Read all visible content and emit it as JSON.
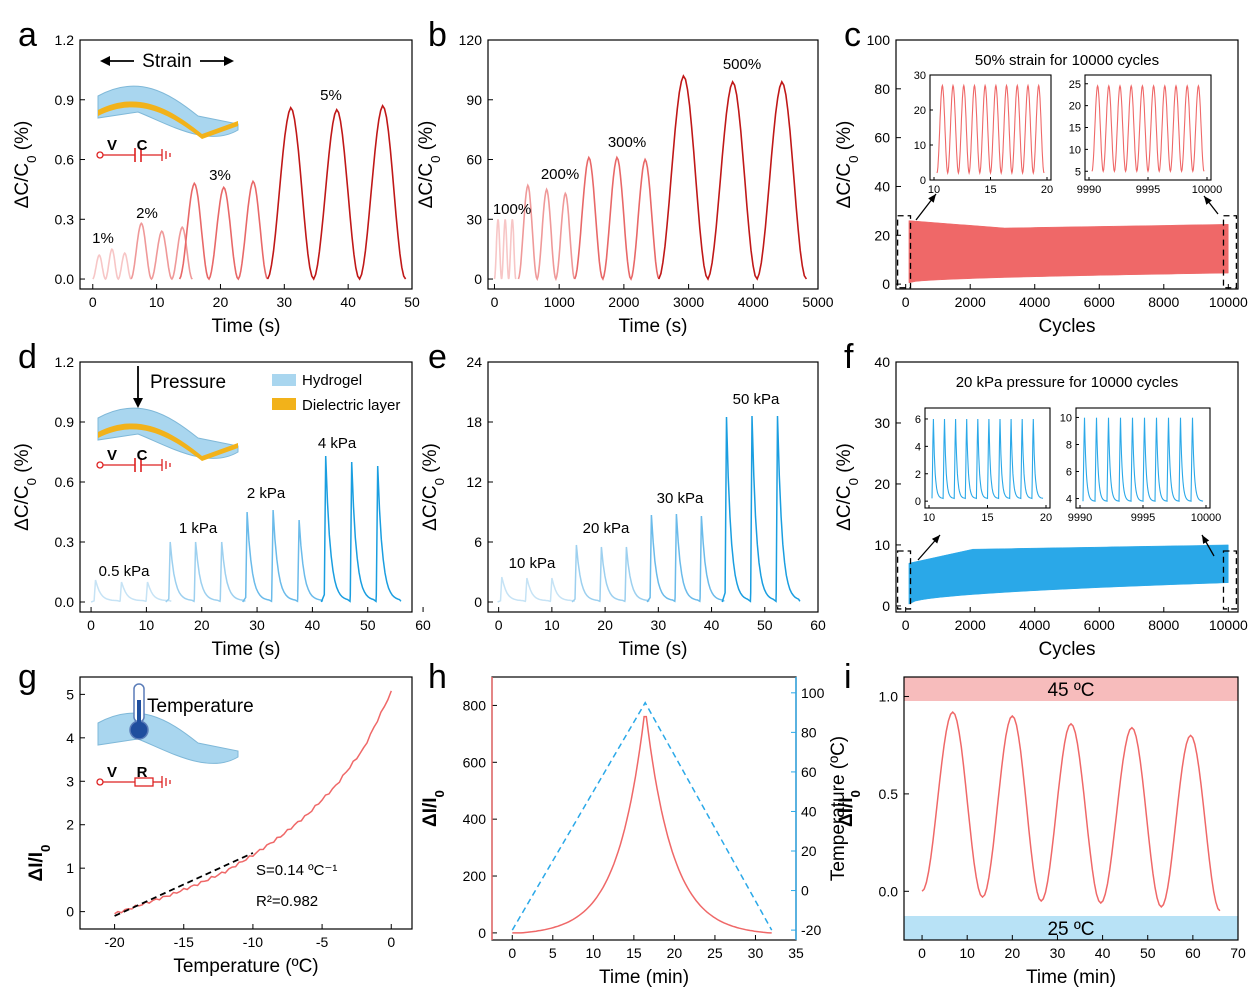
{
  "panel_labels": [
    "a",
    "b",
    "c",
    "d",
    "e",
    "f",
    "g",
    "h",
    "i"
  ],
  "colors": {
    "strain": [
      "#f7c6c6",
      "#ef9999",
      "#e86868",
      "#c01818"
    ],
    "pressure": [
      "#c6e3f5",
      "#9dd0ef",
      "#6bbbea",
      "#1a9ee0"
    ],
    "red": "#ef6868",
    "blue": "#2aa8e8",
    "band_red": "#f7bcbc",
    "band_blue": "#b8e2f6"
  },
  "icons": [
    "strain-sensor-schematic",
    "pressure-sensor-schematic",
    "thermometer-schematic",
    "circuit-symbol"
  ],
  "schematics": {
    "strain": {
      "title": "Strain",
      "v": "V",
      "c": "C"
    },
    "pressure": {
      "title": "Pressure",
      "v": "V",
      "c": "C",
      "legend": [
        "Hydrogel",
        "Dielectric layer"
      ]
    },
    "temperature": {
      "title": "Temperature",
      "v": "V",
      "r": "R"
    }
  },
  "chart_data": [
    {
      "id": "a",
      "type": "line",
      "xlabel": "Time (s)",
      "ylabel": "ΔC/C0 (%)",
      "xlim": [
        -2,
        50
      ],
      "ylim": [
        -0.05,
        1.2
      ],
      "xticks": [
        0,
        10,
        20,
        30,
        40,
        50
      ],
      "yticks": [
        "0.0",
        "0.3",
        "0.6",
        "0.9",
        "1.2"
      ],
      "series": [
        {
          "name": "1%",
          "period": 2.0,
          "peaks": [
            0.12,
            0.15,
            0.13
          ],
          "t0": 0
        },
        {
          "name": "2%",
          "period": 3.2,
          "peaks": [
            0.28,
            0.24,
            0.26
          ],
          "t0": 6
        },
        {
          "name": "3%",
          "period": 4.6,
          "peaks": [
            0.48,
            0.46,
            0.49
          ],
          "t0": 13.6
        },
        {
          "name": "5%",
          "period": 7.2,
          "peaks": [
            0.86,
            0.85,
            0.87
          ],
          "t0": 27.4
        }
      ],
      "labels": [
        "1%",
        "2%",
        "3%",
        "5%"
      ]
    },
    {
      "id": "b",
      "type": "line",
      "xlabel": "Time (s)",
      "ylabel": "ΔC/C0 (%)",
      "xlim": [
        -100,
        5000
      ],
      "ylim": [
        -5,
        120
      ],
      "xticks": [
        0,
        1000,
        2000,
        3000,
        4000,
        5000
      ],
      "yticks": [
        "0",
        "30",
        "60",
        "90",
        "120"
      ],
      "series": [
        {
          "name": "100%",
          "period": 110,
          "peaks": [
            30,
            30,
            30
          ],
          "t0": 0
        },
        {
          "name": "200%",
          "period": 290,
          "peaks": [
            47,
            45,
            43
          ],
          "t0": 370
        },
        {
          "name": "300%",
          "period": 435,
          "peaks": [
            61,
            61,
            60
          ],
          "t0": 1240
        },
        {
          "name": "500%",
          "period": 760,
          "peaks": [
            102,
            99,
            99
          ],
          "t0": 2540
        }
      ],
      "labels": [
        "100%",
        "200%",
        "300%",
        "500%"
      ]
    },
    {
      "id": "c",
      "type": "area",
      "title": "50% strain for 10000 cycles",
      "xlabel": "Cycles",
      "ylabel": "ΔC/C0 (%)",
      "xlim": [
        -300,
        10300
      ],
      "ylim": [
        -2,
        100
      ],
      "xticks": [
        0,
        2000,
        4000,
        6000,
        8000,
        10000
      ],
      "yticks": [
        "0",
        "20",
        "40",
        "60",
        "80",
        "100"
      ],
      "band": {
        "upper_start": 26,
        "upper_min": 23,
        "upper_end": 24.5,
        "lower_start": 0.5,
        "lower_end": 4.5
      },
      "insets": [
        {
          "xticks": [
            "10",
            "15",
            "20"
          ],
          "yticks": [
            "0",
            "10",
            "20",
            "30"
          ],
          "ylim": [
            0,
            30
          ],
          "cycles": 10,
          "max": 27,
          "min": 2
        },
        {
          "xticks": [
            "9990",
            "9995",
            "10000"
          ],
          "yticks": [
            "5",
            "10",
            "15",
            "20",
            "25"
          ],
          "ylim": [
            3,
            27
          ],
          "cycles": 10,
          "max": 24.5,
          "min": 5
        }
      ]
    },
    {
      "id": "d",
      "type": "line",
      "xlabel": "Time (s)",
      "ylabel": "ΔC/C0 (%)",
      "xlim": [
        -2,
        58
      ],
      "ylim": [
        -0.05,
        1.2
      ],
      "xticks": [
        0,
        10,
        20,
        30,
        40,
        50,
        60
      ],
      "yticks": [
        "0.0",
        "0.3",
        "0.6",
        "0.9",
        "1.2"
      ],
      "series": [
        {
          "name": "0.5 kPa",
          "times": [
            0.8,
            5.5,
            10.2
          ],
          "peaks": [
            0.11,
            0.1,
            0.1
          ]
        },
        {
          "name": "1 kPa",
          "times": [
            14.3,
            18.9,
            23.6
          ],
          "peaks": [
            0.3,
            0.3,
            0.3
          ]
        },
        {
          "name": "2 kPa",
          "times": [
            28.2,
            32.9,
            37.6
          ],
          "peaks": [
            0.45,
            0.46,
            0.41
          ]
        },
        {
          "name": "4 kPa",
          "times": [
            42.4,
            47.1,
            51.8
          ],
          "peaks": [
            0.73,
            0.7,
            0.68
          ]
        }
      ],
      "labels": [
        "0.5 kPa",
        "1 kPa",
        "2 kPa",
        "4 kPa"
      ]
    },
    {
      "id": "e",
      "type": "line",
      "xlabel": "Time (s)",
      "ylabel": "ΔC/C0 (%)",
      "xlim": [
        -2,
        60
      ],
      "ylim": [
        -1,
        24
      ],
      "xticks": [
        0,
        10,
        20,
        30,
        40,
        50,
        60
      ],
      "yticks": [
        "0",
        "6",
        "12",
        "18",
        "24"
      ],
      "series": [
        {
          "name": "10 kPa",
          "times": [
            0.6,
            5.3,
            10
          ],
          "peaks": [
            2.5,
            2.4,
            2.4
          ]
        },
        {
          "name": "20 kPa",
          "times": [
            14.6,
            19.3,
            24
          ],
          "peaks": [
            5.7,
            5.5,
            5.5
          ]
        },
        {
          "name": "30 kPa",
          "times": [
            28.7,
            33.4,
            38.1
          ],
          "peaks": [
            8.7,
            8.8,
            8.6
          ]
        },
        {
          "name": "50 kPa",
          "times": [
            42.8,
            47.6,
            52.4
          ],
          "peaks": [
            18.5,
            18.6,
            18.6
          ]
        }
      ],
      "labels": [
        "10 kPa",
        "20 kPa",
        "30 kPa",
        "50 kPa"
      ]
    },
    {
      "id": "f",
      "type": "area",
      "title": "20 kPa pressure for 10000 cycles",
      "xlabel": "Cycles",
      "ylabel": "ΔC/C0 (%)",
      "xlim": [
        -300,
        10300
      ],
      "ylim": [
        -1,
        40
      ],
      "xticks": [
        0,
        2000,
        4000,
        6000,
        8000,
        10000
      ],
      "yticks": [
        "0",
        "10",
        "20",
        "30",
        "40"
      ],
      "band": {
        "upper_start": 7,
        "upper_mid": 9.3,
        "upper_end": 10,
        "lower_start": 0.3,
        "lower_end": 3.8
      },
      "insets": [
        {
          "xticks": [
            "10",
            "15",
            "20"
          ],
          "yticks": [
            "0",
            "2",
            "4",
            "6"
          ],
          "ylim": [
            -0.5,
            6.8
          ],
          "cycles": 10,
          "max": 6.2,
          "min": 0.2
        },
        {
          "xticks": [
            "9990",
            "9995",
            "10000"
          ],
          "yticks": [
            "4",
            "6",
            "8",
            "10"
          ],
          "ylim": [
            3.3,
            10.7
          ],
          "cycles": 10,
          "max": 10.2,
          "min": 3.8
        }
      ]
    },
    {
      "id": "g",
      "type": "line",
      "xlabel": "Temperature (ºC)",
      "ylabel": "ΔI/I0",
      "xlim": [
        -22.5,
        1.5
      ],
      "ylim": [
        -0.4,
        5.4
      ],
      "xticks": [
        -20,
        -15,
        -10,
        -5,
        0
      ],
      "yticks": [
        "0",
        "1",
        "2",
        "3",
        "4",
        "5"
      ],
      "series": [
        {
          "name": "",
          "x": [
            -20,
            -18,
            -16,
            -14,
            -12,
            -10,
            -8,
            -6,
            -4,
            -2,
            0
          ],
          "y": [
            -0.05,
            0.17,
            0.38,
            0.63,
            0.92,
            1.3,
            1.73,
            2.25,
            2.9,
            3.75,
            5.05
          ]
        }
      ],
      "fit": {
        "x": [
          -20,
          -10
        ],
        "y": [
          -0.1,
          1.35
        ]
      },
      "annotations": [
        "S=0.14 ºC⁻¹",
        "R²=0.982"
      ]
    },
    {
      "id": "h",
      "type": "line",
      "xlabel": "Time (min)",
      "ylabel": "ΔI/I0",
      "y2label": "Temperature (ºC)",
      "xlim": [
        -2.5,
        35
      ],
      "ylim": [
        -25,
        900
      ],
      "y2lim": [
        -25,
        108
      ],
      "xticks": [
        0,
        5,
        10,
        15,
        20,
        25,
        30,
        35
      ],
      "yticks": [
        "0",
        "200",
        "400",
        "600",
        "800"
      ],
      "y2ticks": [
        "-20",
        "0",
        "20",
        "40",
        "60",
        "80",
        "100"
      ],
      "series": [
        {
          "name": "ΔI/I0",
          "peak_t": 16.4,
          "peak": 800,
          "t_end": 32
        },
        {
          "name": "Temperature",
          "x": [
            0,
            16.4,
            32
          ],
          "y": [
            -20,
            95,
            -20
          ]
        }
      ]
    },
    {
      "id": "i",
      "type": "line",
      "xlabel": "Time (min)",
      "ylabel": "ΔI/I0",
      "xlim": [
        -4,
        70
      ],
      "ylim": [
        -0.25,
        1.1
      ],
      "xticks": [
        0,
        10,
        20,
        30,
        40,
        50,
        60,
        70
      ],
      "yticks": [
        "0.0",
        "0.5",
        "1.0"
      ],
      "bands": [
        "45 ºC",
        "25 ºC"
      ],
      "series": [
        {
          "name": "",
          "peaks_t": [
            6.8,
            20,
            33,
            46.5,
            59.5
          ],
          "peaks": [
            0.92,
            0.9,
            0.86,
            0.84,
            0.8
          ],
          "mins_t": [
            13.4,
            26.4,
            39.6,
            53
          ],
          "mins": [
            -0.03,
            -0.05,
            -0.06,
            -0.08
          ],
          "t_start": 0,
          "t_end": 66,
          "y_end": -0.1
        }
      ]
    }
  ]
}
